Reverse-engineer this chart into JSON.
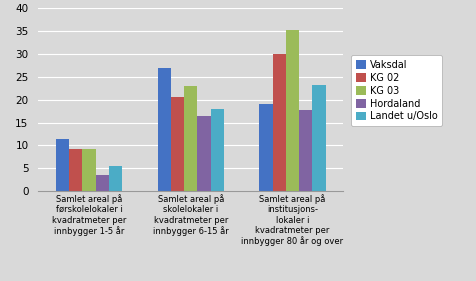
{
  "categories": [
    "Samlet areal på\nførskolelokaler i\nkvadratmeter per\ninnbygger 1-5 år",
    "Samlet areal på\nskolelokaler i\nkvadratmeter per\ninnbygger 6-15 år",
    "Samlet areal på\ninstitusjons-\nlokaler i\nkvadratmeter per\ninnbygger 80 år og over"
  ],
  "series": {
    "Vaksdal": [
      11.5,
      27.0,
      19.0
    ],
    "KG 02": [
      9.2,
      20.5,
      30.0
    ],
    "KG 03": [
      9.3,
      23.0,
      35.3
    ],
    "Hordaland": [
      3.5,
      16.5,
      17.7
    ],
    "Landet u/Oslo": [
      5.6,
      18.0,
      23.3
    ]
  },
  "colors": {
    "Vaksdal": "#4472C4",
    "KG 02": "#C0504D",
    "KG 03": "#9BBB59",
    "Hordaland": "#8064A2",
    "Landet u/Oslo": "#4BACC6"
  },
  "ylim": [
    0,
    40
  ],
  "yticks": [
    0,
    5,
    10,
    15,
    20,
    25,
    30,
    35,
    40
  ],
  "background_color": "#D9D9D9",
  "plot_background": "#D9D9D9",
  "grid_color": "#FFFFFF"
}
